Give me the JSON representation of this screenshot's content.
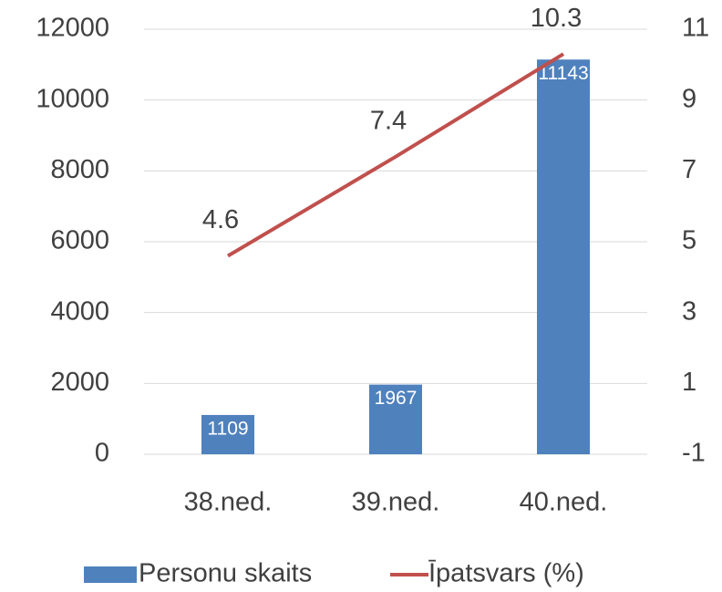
{
  "chart_data": {
    "type": "bar",
    "categories": [
      "38.ned.",
      "39.ned.",
      "40.ned."
    ],
    "series": [
      {
        "name": "Personu skaits",
        "type": "bar",
        "color": "#4f81bd",
        "values": [
          1109,
          1967,
          11143
        ]
      },
      {
        "name": "Īpatsvars (%)",
        "type": "line",
        "axis": "y2",
        "color": "#c0504d",
        "values": [
          4.6,
          7.4,
          10.3
        ]
      }
    ],
    "ylim": [
      0,
      12000
    ],
    "yticks": [
      0,
      2000,
      4000,
      6000,
      8000,
      10000,
      12000
    ],
    "y2lim": [
      -1,
      11
    ],
    "y2ticks": [
      -1,
      1,
      3,
      5,
      7,
      9,
      11
    ],
    "grid": true,
    "legend": "bottom"
  }
}
